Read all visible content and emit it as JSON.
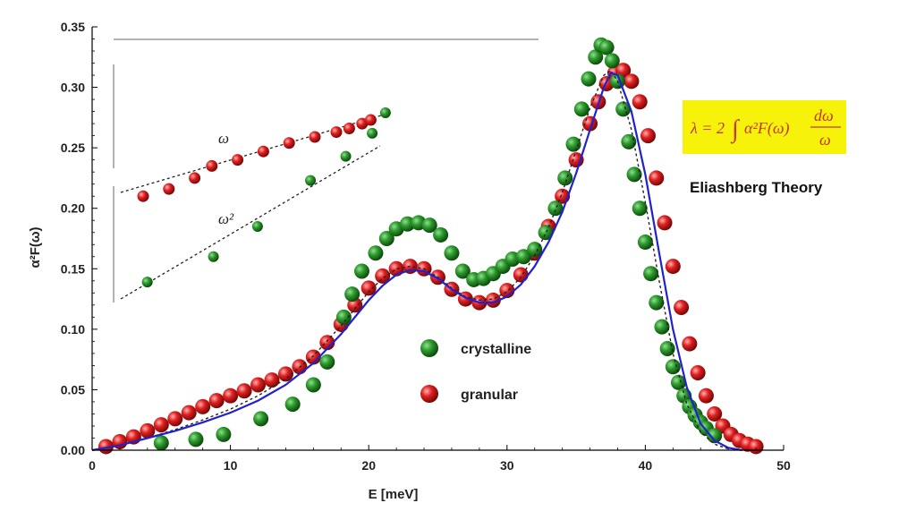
{
  "colors": {
    "crystalline": "#1f7a1f",
    "crystalline_highlight": "#7fd67f",
    "granular": "#d41a1a",
    "granular_highlight": "#ff9a9a",
    "fit_line": "#2222cc",
    "dashed": "#222222",
    "formula_bg": "#f7f20a",
    "formula_text": "#c0392b"
  },
  "annotation": {
    "theory": "Eliashberg Theory",
    "formula_lhs": "λ = 2",
    "formula_int": "∫",
    "formula_body": "α²F(ω)",
    "formula_num": "dω",
    "formula_den": "ω"
  },
  "inset": {
    "label_omega": "ω",
    "label_omega2": "ω²",
    "crystalline_points": [
      [
        0.05,
        0.139
      ],
      [
        0.2,
        0.16
      ],
      [
        0.3,
        0.185
      ],
      [
        0.42,
        0.223
      ],
      [
        0.5,
        0.243
      ],
      [
        0.56,
        0.262
      ],
      [
        0.59,
        0.279
      ]
    ],
    "granular_points": [
      [
        0.0,
        0.21
      ],
      [
        0.06,
        0.216
      ],
      [
        0.12,
        0.225
      ],
      [
        0.16,
        0.235
      ],
      [
        0.22,
        0.24
      ],
      [
        0.28,
        0.247
      ],
      [
        0.34,
        0.254
      ],
      [
        0.4,
        0.259
      ],
      [
        0.45,
        0.263
      ],
      [
        0.48,
        0.266
      ],
      [
        0.51,
        0.27
      ],
      [
        0.53,
        0.273
      ]
    ]
  },
  "chart_data": {
    "type": "scatter",
    "title": "",
    "xlabel": "E [meV]",
    "ylabel": "α²F(ω)",
    "xlim": [
      0,
      50
    ],
    "ylim": [
      0,
      0.35
    ],
    "xticks": [
      "0",
      "10",
      "20",
      "30",
      "40",
      "50"
    ],
    "yticks": [
      "0.00",
      "0.05",
      "0.10",
      "0.15",
      "0.20",
      "0.25",
      "0.30",
      "0.35"
    ],
    "legend_position": "center",
    "series": [
      {
        "name": "crystalline",
        "x": [
          5.0,
          7.5,
          9.5,
          12.2,
          14.5,
          16.0,
          17.0,
          18.2,
          18.8,
          19.5,
          20.5,
          21.3,
          22.0,
          22.8,
          23.6,
          24.4,
          25.2,
          26.0,
          26.8,
          27.6,
          28.3,
          29.0,
          29.7,
          30.4,
          31.2,
          32.0,
          32.8,
          33.5,
          34.2,
          34.8,
          35.4,
          35.9,
          36.4,
          36.8,
          37.2,
          37.6,
          38.0,
          38.4,
          38.8,
          39.2,
          39.6,
          40.0,
          40.4,
          40.8,
          41.2,
          41.6,
          42.0,
          42.4,
          42.8,
          43.2,
          43.6,
          44.0,
          44.4,
          45.0
        ],
        "values": [
          0.006,
          0.009,
          0.013,
          0.026,
          0.038,
          0.054,
          0.073,
          0.11,
          0.129,
          0.148,
          0.163,
          0.175,
          0.183,
          0.187,
          0.188,
          0.186,
          0.178,
          0.163,
          0.148,
          0.141,
          0.142,
          0.146,
          0.152,
          0.158,
          0.16,
          0.166,
          0.18,
          0.2,
          0.225,
          0.253,
          0.282,
          0.307,
          0.325,
          0.335,
          0.333,
          0.322,
          0.305,
          0.282,
          0.255,
          0.228,
          0.2,
          0.172,
          0.146,
          0.122,
          0.102,
          0.084,
          0.069,
          0.056,
          0.045,
          0.036,
          0.029,
          0.023,
          0.018,
          0.012
        ]
      },
      {
        "name": "granular",
        "x": [
          1.0,
          2.0,
          3.0,
          4.0,
          5.0,
          6.0,
          7.0,
          8.0,
          9.0,
          10.0,
          11.0,
          12.0,
          13.0,
          14.0,
          15.0,
          16.0,
          17.0,
          18.0,
          19.0,
          20.0,
          21.0,
          22.0,
          23.0,
          24.0,
          25.0,
          26.0,
          27.0,
          28.0,
          29.0,
          30.0,
          31.0,
          32.0,
          33.0,
          34.0,
          35.0,
          36.0,
          36.6,
          37.2,
          37.8,
          38.4,
          39.0,
          39.6,
          40.2,
          40.8,
          41.4,
          42.0,
          42.6,
          43.2,
          43.8,
          44.4,
          45.0,
          45.6,
          46.2,
          46.8,
          47.4,
          48.0
        ],
        "values": [
          0.003,
          0.007,
          0.011,
          0.016,
          0.021,
          0.026,
          0.031,
          0.036,
          0.041,
          0.045,
          0.049,
          0.054,
          0.058,
          0.063,
          0.069,
          0.077,
          0.089,
          0.104,
          0.12,
          0.134,
          0.144,
          0.15,
          0.152,
          0.15,
          0.143,
          0.133,
          0.125,
          0.122,
          0.124,
          0.132,
          0.145,
          0.163,
          0.185,
          0.21,
          0.24,
          0.27,
          0.288,
          0.303,
          0.312,
          0.314,
          0.305,
          0.288,
          0.26,
          0.225,
          0.188,
          0.152,
          0.118,
          0.088,
          0.064,
          0.045,
          0.03,
          0.02,
          0.013,
          0.008,
          0.005,
          0.003
        ]
      }
    ],
    "fit_curve": {
      "x": [
        0,
        2,
        4,
        6,
        8,
        10,
        12,
        14,
        16,
        18,
        20,
        21,
        22,
        23,
        24,
        25,
        26,
        27,
        28,
        29,
        30,
        31,
        32,
        33,
        34,
        35,
        36,
        37,
        37.5,
        38,
        39,
        40,
        41,
        42,
        43,
        44,
        45,
        46,
        47
      ],
      "values": [
        0.0,
        0.004,
        0.01,
        0.016,
        0.023,
        0.031,
        0.041,
        0.054,
        0.072,
        0.096,
        0.124,
        0.136,
        0.145,
        0.149,
        0.148,
        0.142,
        0.133,
        0.126,
        0.122,
        0.122,
        0.127,
        0.137,
        0.152,
        0.172,
        0.197,
        0.229,
        0.265,
        0.3,
        0.312,
        0.31,
        0.28,
        0.228,
        0.163,
        0.1,
        0.052,
        0.022,
        0.008,
        0.002,
        0.0
      ]
    },
    "dashed_curve": {
      "x": [
        0,
        2,
        4,
        6,
        8,
        10,
        12,
        14,
        16,
        18,
        20,
        21,
        22,
        23,
        24,
        25,
        26,
        27,
        28,
        29,
        30,
        31,
        32,
        33,
        34,
        35,
        36,
        37,
        37.5,
        38,
        39,
        40,
        41,
        42,
        43,
        44,
        45,
        46
      ],
      "values": [
        0.0,
        0.004,
        0.01,
        0.017,
        0.025,
        0.034,
        0.045,
        0.059,
        0.078,
        0.103,
        0.131,
        0.142,
        0.15,
        0.152,
        0.15,
        0.143,
        0.134,
        0.127,
        0.124,
        0.125,
        0.131,
        0.143,
        0.161,
        0.184,
        0.213,
        0.248,
        0.283,
        0.31,
        0.314,
        0.305,
        0.265,
        0.205,
        0.14,
        0.08,
        0.038,
        0.015,
        0.005,
        0.001
      ]
    }
  }
}
